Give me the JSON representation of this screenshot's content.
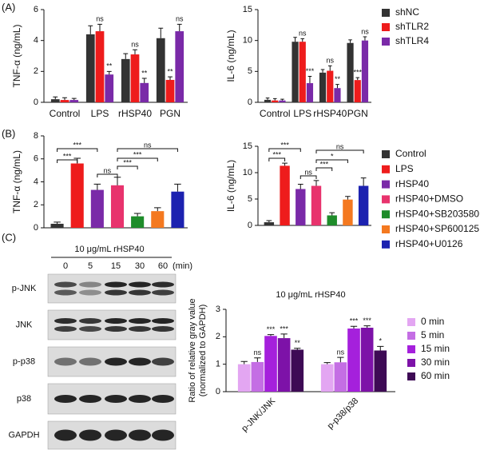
{
  "panel_labels": [
    "(A)",
    "(B)",
    "(C)"
  ],
  "chart_data": [
    {
      "type": "bar",
      "ylabel": "TNF-α (ng/mL)",
      "categories": [
        "Control",
        "LPS",
        "rHSP40",
        "PGN"
      ],
      "series": [
        {
          "name": "shNC",
          "color": "#333333",
          "values": [
            0.2,
            4.4,
            2.8,
            4.15
          ],
          "errors": [
            0.15,
            0.55,
            0.35,
            0.65
          ],
          "labels": [
            null,
            null,
            null,
            null
          ]
        },
        {
          "name": "shTLR2",
          "color": "#ee1c1c",
          "values": [
            0.15,
            4.6,
            3.1,
            1.45
          ],
          "errors": [
            0.15,
            0.45,
            0.3,
            0.2
          ],
          "labels": [
            null,
            "ns",
            "ns",
            "**"
          ]
        },
        {
          "name": "shTLR4",
          "color": "#7a2aa8",
          "values": [
            0.15,
            1.8,
            1.25,
            4.6
          ],
          "errors": [
            0.1,
            0.2,
            0.3,
            0.45
          ],
          "labels": [
            null,
            "**",
            "**",
            "ns"
          ]
        }
      ],
      "ylim": [
        0,
        6
      ],
      "yticks": [
        0,
        2,
        4,
        6
      ],
      "legend": "right"
    },
    {
      "type": "bar",
      "ylabel": "IL-6 (ng/mL)",
      "categories": [
        "Control",
        "LPS",
        "rHSP40",
        "PGN"
      ],
      "series": [
        {
          "color": "#333333",
          "values": [
            0.4,
            9.8,
            4.8,
            9.6
          ],
          "errors": [
            0.3,
            0.7,
            0.5,
            0.5
          ],
          "labels": [
            null,
            null,
            null,
            null
          ]
        },
        {
          "color": "#ee1c1c",
          "values": [
            0.3,
            9.8,
            5.1,
            3.6
          ],
          "errors": [
            0.3,
            0.5,
            0.8,
            0.4
          ],
          "labels": [
            null,
            "ns",
            "ns",
            "***"
          ]
        },
        {
          "color": "#7a2aa8",
          "values": [
            0.3,
            3.1,
            2.3,
            10.0
          ],
          "errors": [
            0.2,
            1.1,
            0.6,
            0.6
          ],
          "labels": [
            null,
            "***",
            "**",
            "ns"
          ]
        }
      ],
      "ylim": [
        0,
        15
      ],
      "yticks": [
        0,
        5,
        10,
        15
      ]
    },
    {
      "type": "bar",
      "ylabel": "TNF-α (ng/mL)",
      "categories": [
        "Control",
        "LPS",
        "rHSP40",
        "rHSP40+DMSO",
        "rHSP40+SB203580",
        "rHSP40+SP600125",
        "rHSP40+U0126"
      ],
      "colors": [
        "#333333",
        "#ee1c1c",
        "#7a2aa8",
        "#e8336d",
        "#1e8c2a",
        "#f47920",
        "#1c22b0"
      ],
      "values": [
        0.35,
        5.6,
        3.3,
        3.7,
        1.0,
        1.45,
        3.15
      ],
      "errors": [
        0.15,
        0.45,
        0.5,
        0.7,
        0.25,
        0.3,
        0.65
      ],
      "comparisons": [
        {
          "from": "Control",
          "to": "LPS",
          "label": "***"
        },
        {
          "from": "Control",
          "to": "rHSP40",
          "label": "***"
        },
        {
          "from": "rHSP40",
          "to": "rHSP40+DMSO",
          "label": "ns"
        },
        {
          "from": "rHSP40+DMSO",
          "to": "rHSP40+SB203580",
          "label": "***"
        },
        {
          "from": "rHSP40+DMSO",
          "to": "rHSP40+SP600125",
          "label": "***"
        },
        {
          "from": "rHSP40+DMSO",
          "to": "rHSP40+U0126",
          "label": "ns"
        }
      ],
      "ylim": [
        0,
        8
      ],
      "yticks": [
        0,
        2,
        4,
        6,
        8
      ],
      "legend": "right"
    },
    {
      "type": "bar",
      "ylabel": "IL-6 (ng/mL)",
      "colors": [
        "#333333",
        "#ee1c1c",
        "#7a2aa8",
        "#e8336d",
        "#1e8c2a",
        "#f47920",
        "#1c22b0"
      ],
      "values": [
        0.6,
        11.3,
        6.9,
        7.5,
        1.9,
        4.9,
        7.5
      ],
      "errors": [
        0.3,
        0.5,
        0.9,
        1.0,
        0.5,
        0.6,
        1.5
      ],
      "comparisons": [
        {
          "from": 0,
          "to": 1,
          "label": "***"
        },
        {
          "from": 0,
          "to": 2,
          "label": "***"
        },
        {
          "from": 2,
          "to": 3,
          "label": "ns"
        },
        {
          "from": 3,
          "to": 4,
          "label": "***"
        },
        {
          "from": 3,
          "to": 5,
          "label": "*"
        },
        {
          "from": 3,
          "to": 6,
          "label": "ns"
        }
      ],
      "ylim": [
        0,
        15
      ],
      "yticks": [
        0,
        5,
        10,
        15
      ]
    },
    {
      "type": "bar",
      "title": "10 μg/mL rHSP40",
      "ylabel": [
        "Ratio of relative gray value",
        "(normalized to GAPDH)"
      ],
      "categories": [
        "p-JNK/JNK",
        "p-p38/p38"
      ],
      "series": [
        {
          "name": "0 min",
          "color": "#e3a6f2",
          "values": [
            1.0,
            1.0
          ],
          "errors": [
            0.1,
            0.06
          ],
          "labels": [
            null,
            null
          ]
        },
        {
          "name": "5 min",
          "color": "#c46ee4",
          "values": [
            1.08,
            1.07
          ],
          "errors": [
            0.15,
            0.18
          ],
          "labels": [
            "ns",
            "ns"
          ]
        },
        {
          "name": "15 min",
          "color": "#a520dc",
          "values": [
            2.03,
            2.3
          ],
          "errors": [
            0.05,
            0.08
          ],
          "labels": [
            "***",
            "***"
          ]
        },
        {
          "name": "30 min",
          "color": "#7d12a8",
          "values": [
            1.95,
            2.33
          ],
          "errors": [
            0.15,
            0.07
          ],
          "labels": [
            "***",
            "***"
          ]
        },
        {
          "name": "60 min",
          "color": "#3e0a55",
          "values": [
            1.53,
            1.5
          ],
          "errors": [
            0.05,
            0.15
          ],
          "labels": [
            "**",
            "*"
          ]
        }
      ],
      "ylim": [
        0,
        3
      ],
      "yticks": [
        0,
        1,
        2,
        3
      ],
      "legend": "right"
    }
  ],
  "blot": {
    "title": "10 μg/mL rHSP40",
    "lanes": [
      "0",
      "5",
      "15",
      "30",
      "60"
    ],
    "unit": "(min)",
    "rows": [
      "p-JNK",
      "JNK",
      "p-p38",
      "p38",
      "GAPDH"
    ]
  }
}
